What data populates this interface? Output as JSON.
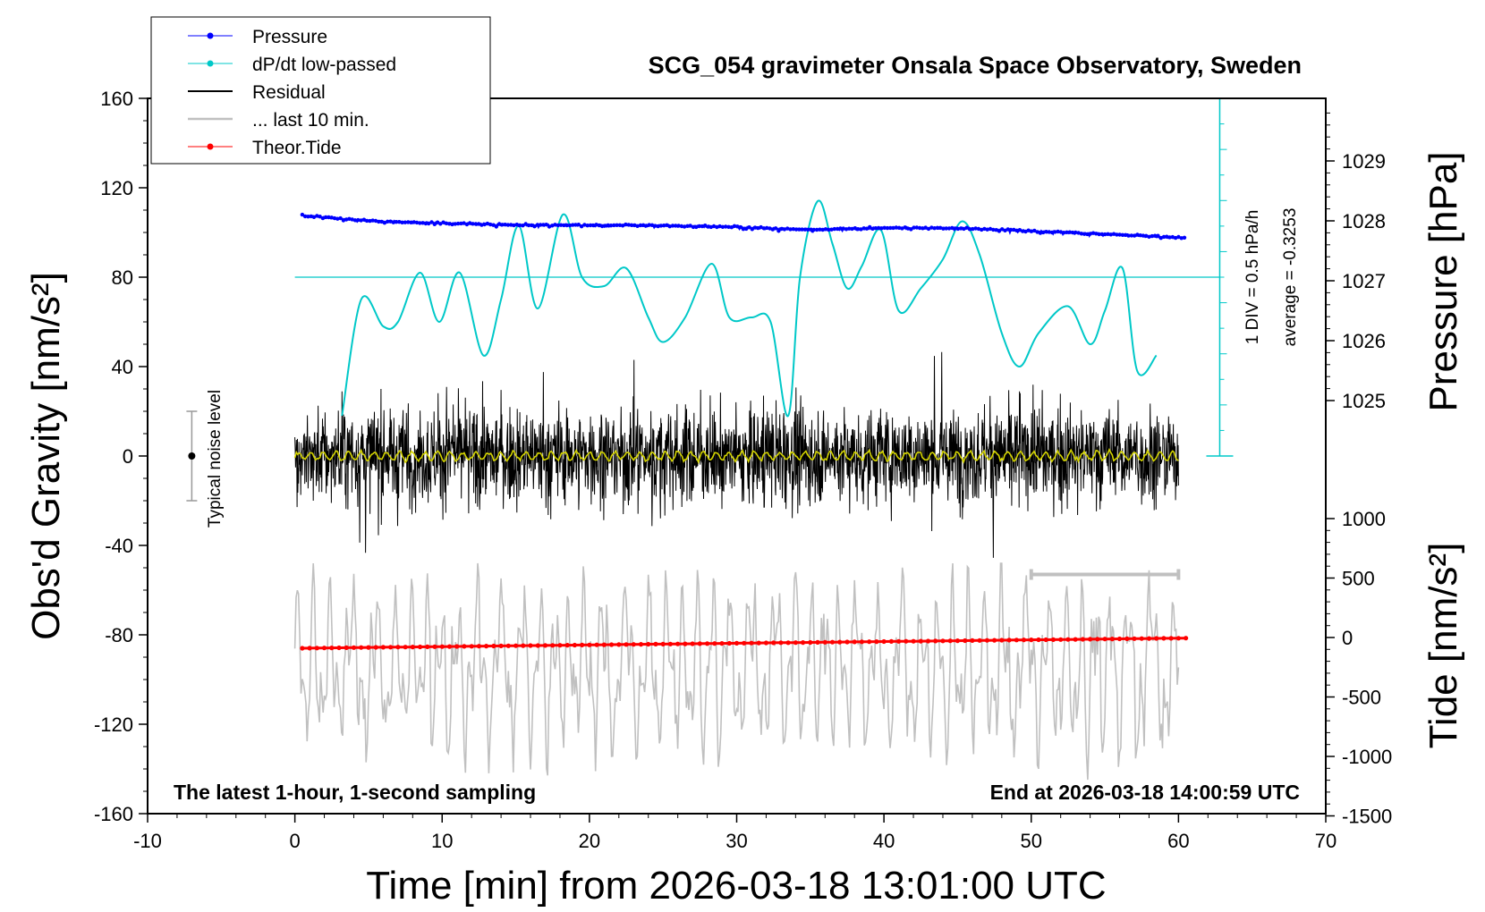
{
  "chart_data": {
    "type": "line",
    "title": "SCG_054 gravimeter Onsala Space Observatory, Sweden",
    "xlabel": "Time [min] from 2026-03-18 13:01:00 UTC",
    "ylabel": "Obs'd Gravity [nm/s²]",
    "ylabel_right_top": "Pressure [hPa]",
    "ylabel_right_bottom": "Tide [nm/s²]",
    "xlim": [
      -10,
      70
    ],
    "ylim": [
      -160,
      160
    ],
    "x_ticks": [
      "-10",
      "0",
      "10",
      "20",
      "30",
      "40",
      "50",
      "60",
      "70"
    ],
    "y_ticks": [
      "160",
      "120",
      "80",
      "40",
      "0",
      "-40",
      "-80",
      "-120",
      "-160"
    ],
    "pressure_axis": {
      "ticks": [
        "1029",
        "1028",
        "1027",
        "1026",
        "1025"
      ],
      "tick_values": [
        1029,
        1028,
        1027,
        1026,
        1025
      ]
    },
    "tide_axis": {
      "ticks": [
        "1000",
        "500",
        "0",
        "-500",
        "-1000",
        "-1500"
      ],
      "tick_values": [
        1000,
        500,
        0,
        -500,
        -1000,
        -1500
      ]
    },
    "legend": {
      "placement": "top-left",
      "items": [
        {
          "label": "Pressure",
          "color": "#0000ff",
          "marker": "dot"
        },
        {
          "label": "dP/dt low-passed",
          "color": "#00c8c8",
          "marker": "dot"
        },
        {
          "label": "Residual",
          "color": "#000000",
          "marker": "line"
        },
        {
          "label": "... last 10 min.",
          "color": "#c0c0c0",
          "marker": "line"
        },
        {
          "label": "Theor.Tide",
          "color": "#ff0000",
          "marker": "dot"
        }
      ]
    },
    "annotations": {
      "bottom_left": "The latest 1-hour, 1-second sampling",
      "bottom_right": "End at 2026-03-18 14:00:59 UTC",
      "noise": "Typical noise level",
      "dpdt_scale": "1 DIV = 0.5 hPa/h",
      "dpdt_average": "average = -0.3253"
    },
    "series": [
      {
        "name": "Pressure",
        "color": "#0000ff",
        "axis": "pressure",
        "x": [
          0,
          5,
          10,
          15,
          20,
          25,
          30,
          35,
          40,
          45,
          50,
          55,
          60
        ],
        "values": [
          1028.1,
          1028.0,
          1027.96,
          1027.93,
          1027.93,
          1027.92,
          1027.9,
          1027.85,
          1027.88,
          1027.88,
          1027.83,
          1027.78,
          1027.72
        ]
      },
      {
        "name": "dP/dt low-passed",
        "color": "#00c8c8",
        "axis": "gravity",
        "x": [
          3.2,
          4.5,
          6,
          7,
          8.5,
          9.8,
          11.2,
          12.8,
          14,
          15.2,
          16.5,
          18.2,
          19.5,
          21,
          22.5,
          24,
          25,
          26.5,
          28.3,
          29.5,
          31,
          32.3,
          33.5,
          34.3,
          35.5,
          36.5,
          37.5,
          38.5,
          39.8,
          41,
          42.5,
          44,
          45.3,
          46.5,
          48,
          49.2,
          50.5,
          52.5,
          54,
          55,
          56.2,
          57.2,
          58.5
        ],
        "values": [
          18,
          70,
          58,
          60,
          82,
          60,
          82,
          45,
          70,
          103,
          66,
          108,
          80,
          76,
          84,
          62,
          51,
          62,
          86,
          62,
          62,
          60,
          18,
          80,
          114,
          95,
          75,
          85,
          101,
          65,
          75,
          88,
          105,
          90,
          55,
          40,
          55,
          67,
          50,
          65,
          84,
          38,
          45
        ]
      },
      {
        "name": "Residual",
        "color": "#000000",
        "axis": "gravity",
        "x": [
          0,
          60
        ],
        "values": [
          0,
          0
        ],
        "amplitude": 40
      },
      {
        "name": "... last 10 min.",
        "color": "#c0c0c0",
        "axis": "gravity",
        "x": [
          0,
          60
        ],
        "values": [
          -95,
          -95
        ],
        "amplitude": 45
      },
      {
        "name": "Theor.Tide",
        "color": "#ff0000",
        "axis": "tide",
        "x": [
          0,
          60
        ],
        "values": [
          -90,
          -5
        ]
      }
    ],
    "noise_level": {
      "x": -7,
      "center": 0,
      "low": -20,
      "high": 20
    },
    "last10min_bar": {
      "x_start": 50,
      "x_end": 60,
      "y": -53
    },
    "pressure_reference_line_gravity": 80,
    "dpdt_scale_bar": {
      "x": 62.8,
      "top": 160,
      "bottom": 0
    }
  }
}
